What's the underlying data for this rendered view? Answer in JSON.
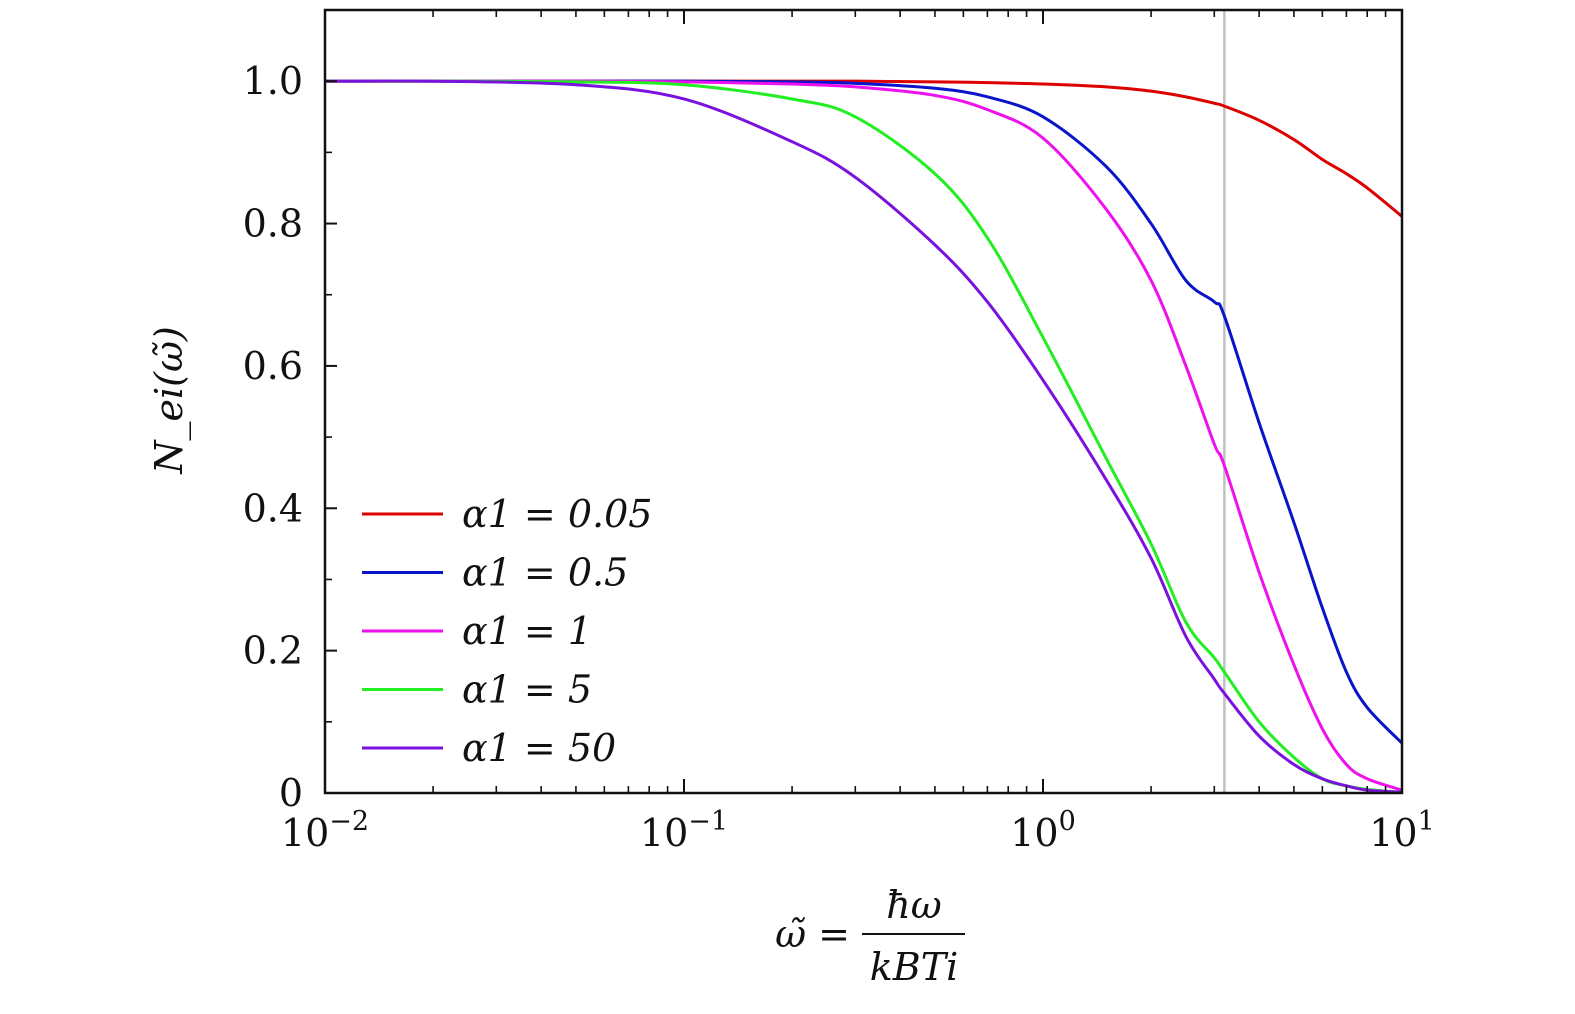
{
  "chart_data": {
    "type": "line",
    "x_scale": "log",
    "xlim": [
      0.01,
      10
    ],
    "ylim": [
      0,
      1.1
    ],
    "xlabel": "ω̃ = ħω / k_B T_i",
    "xlabel_parts": {
      "lhs": "ω̃ =",
      "numerator": "ħω",
      "denominator": "kBTi"
    },
    "ylabel": "N_ei(ω̃)",
    "x_ticks": [
      {
        "value": 0.01,
        "label": "10−2"
      },
      {
        "value": 0.1,
        "label": "10−1"
      },
      {
        "value": 1,
        "label": "100"
      },
      {
        "value": 10,
        "label": "101"
      }
    ],
    "y_ticks": [
      {
        "value": 0,
        "label": "0"
      },
      {
        "value": 0.2,
        "label": "0.2"
      },
      {
        "value": 0.4,
        "label": "0.4"
      },
      {
        "value": 0.6,
        "label": "0.6"
      },
      {
        "value": 0.8,
        "label": "0.8"
      },
      {
        "value": 1.0,
        "label": "1.0"
      }
    ],
    "vertical_line": {
      "x": 3.2,
      "color": "#c0c0c0"
    },
    "legend_position": "lower-left",
    "x": [
      0.01,
      0.02,
      0.05,
      0.1,
      0.2,
      0.3,
      0.5,
      0.7,
      1,
      1.5,
      2,
      2.5,
      3,
      3.2,
      4,
      5,
      6,
      7,
      8,
      10
    ],
    "series": [
      {
        "name": "α1 = 0.05",
        "color": "#dd0000",
        "values": [
          1.0,
          1.0,
          1.0,
          1.0,
          1.0,
          1.0,
          0.999,
          0.998,
          0.996,
          0.992,
          0.986,
          0.978,
          0.969,
          0.965,
          0.945,
          0.918,
          0.89,
          0.87,
          0.85,
          0.81
        ]
      },
      {
        "name": "α1 = 0.5",
        "color": "#0a14c8",
        "values": [
          1.0,
          1.0,
          1.0,
          1.0,
          0.999,
          0.997,
          0.99,
          0.978,
          0.95,
          0.88,
          0.8,
          0.72,
          0.69,
          0.67,
          0.52,
          0.38,
          0.26,
          0.17,
          0.12,
          0.07
        ]
      },
      {
        "name": "α1 = 1",
        "color": "#ee11ee",
        "values": [
          1.0,
          1.0,
          1.0,
          0.999,
          0.996,
          0.992,
          0.98,
          0.96,
          0.92,
          0.82,
          0.72,
          0.6,
          0.49,
          0.46,
          0.31,
          0.18,
          0.09,
          0.04,
          0.02,
          0.004
        ]
      },
      {
        "name": "α1 = 5",
        "color": "#22ee22",
        "values": [
          1.0,
          1.0,
          0.999,
          0.995,
          0.975,
          0.95,
          0.87,
          0.78,
          0.64,
          0.47,
          0.35,
          0.24,
          0.19,
          0.17,
          0.1,
          0.05,
          0.02,
          0.01,
          0.005,
          0.001
        ]
      },
      {
        "name": "α1 = 50",
        "color": "#7a12dd",
        "values": [
          1.0,
          1.0,
          0.995,
          0.975,
          0.915,
          0.865,
          0.77,
          0.69,
          0.58,
          0.44,
          0.33,
          0.22,
          0.16,
          0.14,
          0.08,
          0.04,
          0.02,
          0.01,
          0.004,
          0.001
        ]
      }
    ]
  }
}
